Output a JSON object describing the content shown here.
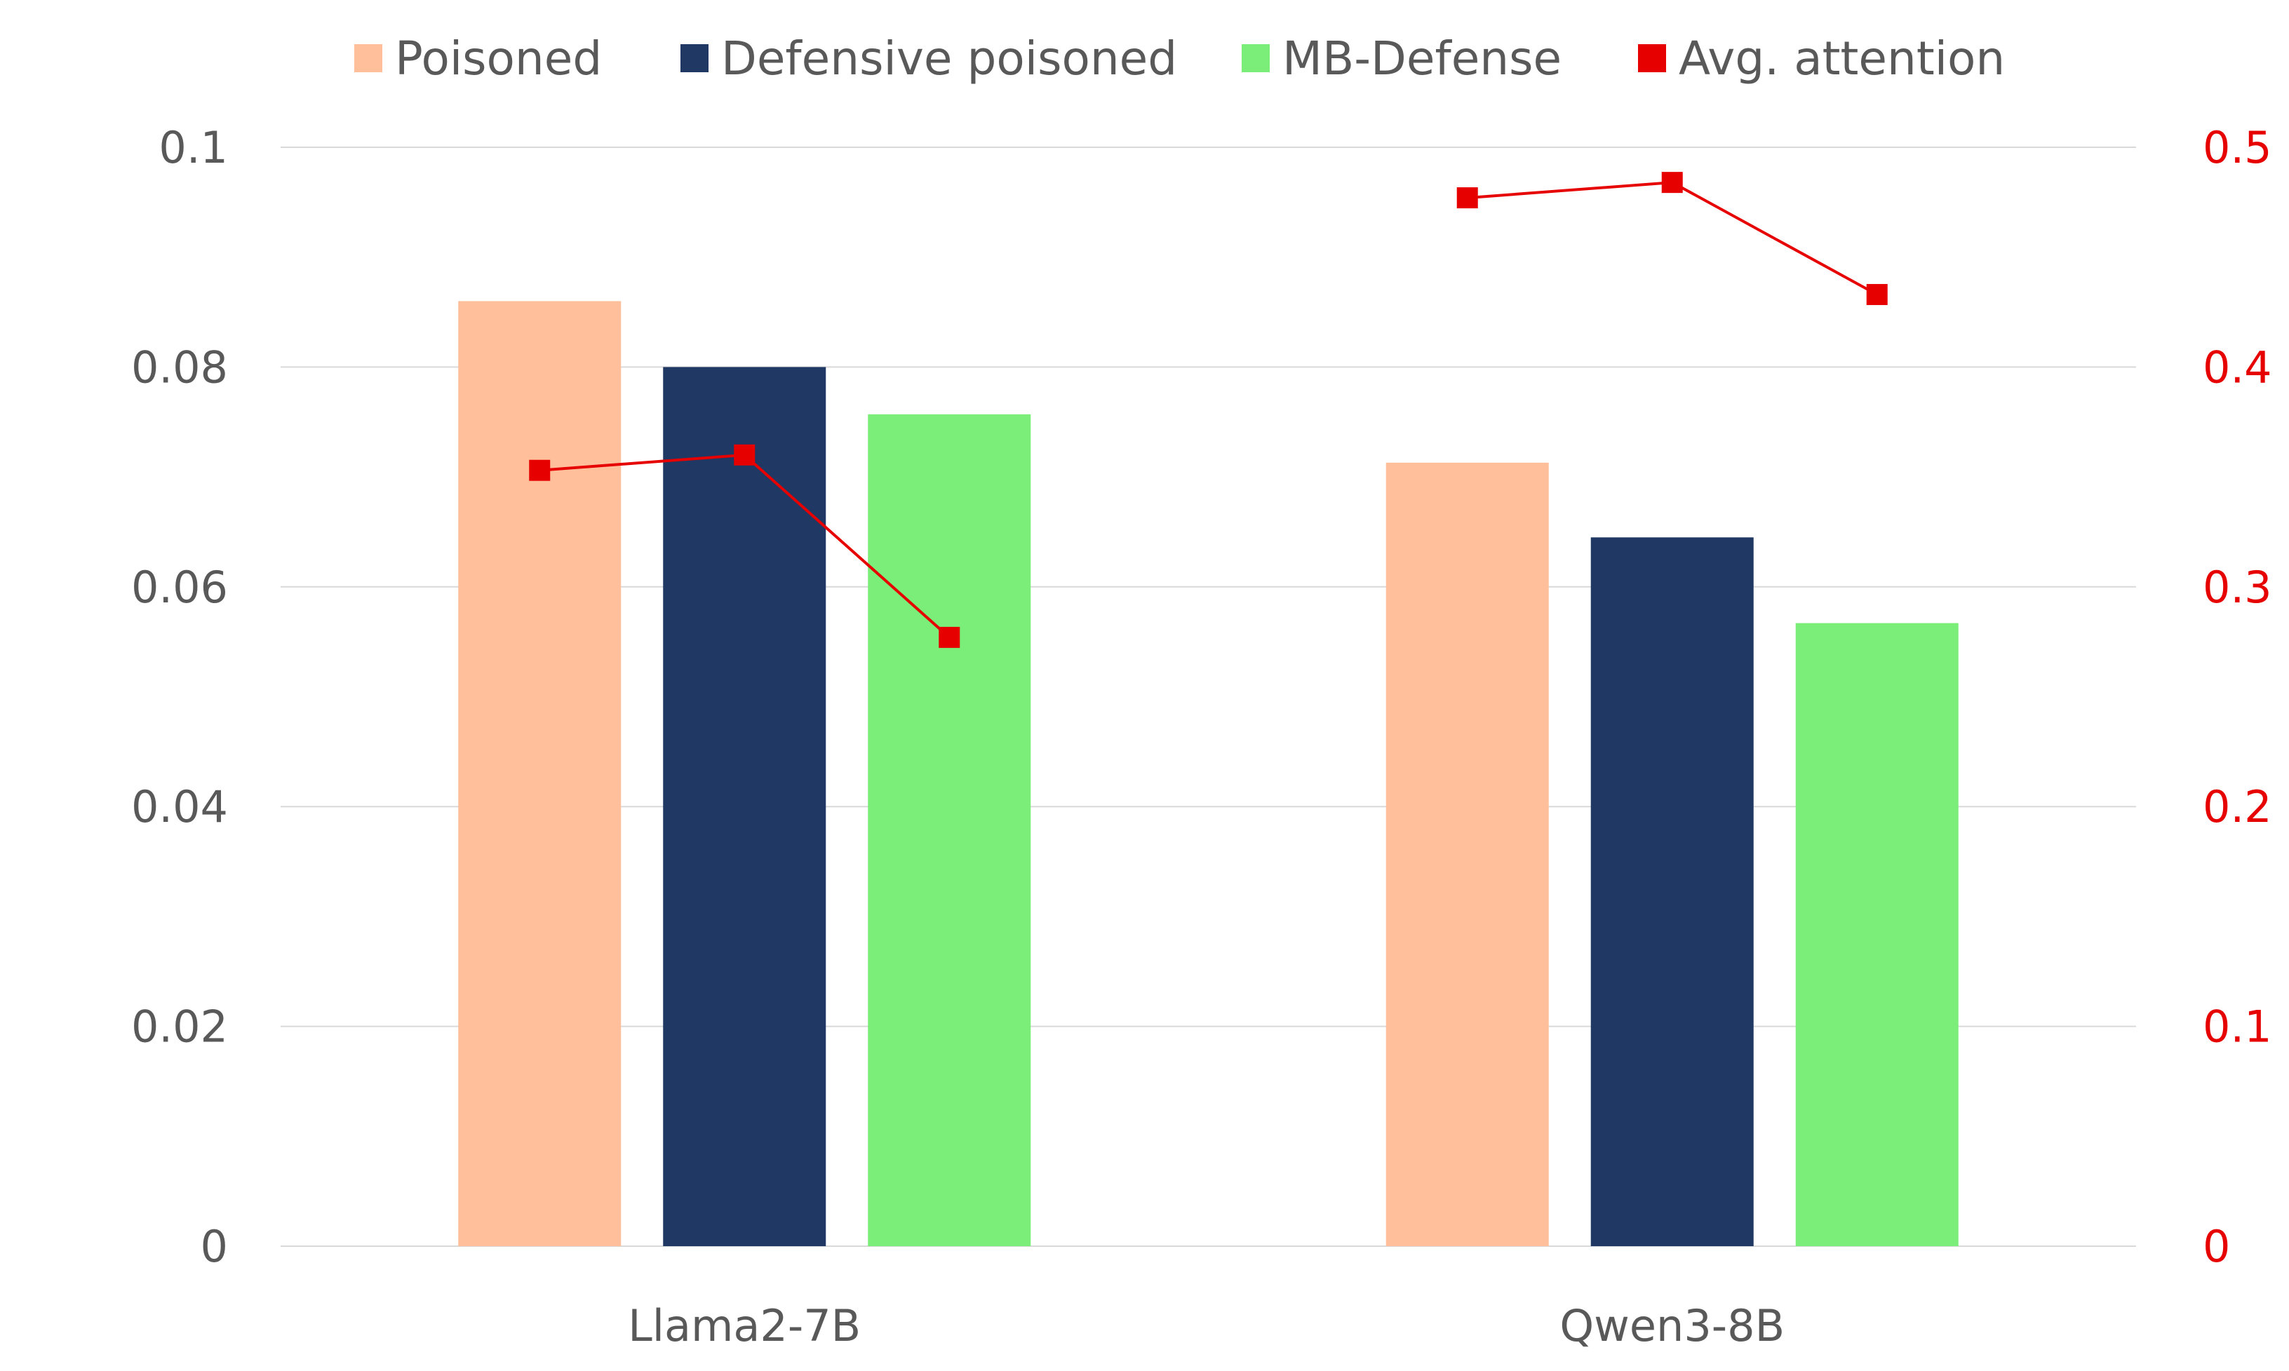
{
  "chart_data": {
    "type": "bar",
    "categories": [
      "Llama2-7B",
      "Qwen3-8B"
    ],
    "series": [
      {
        "name": "Poisoned",
        "kind": "bar",
        "axis": "left",
        "color": "#FFBF9B",
        "values": [
          0.086,
          0.0713
        ]
      },
      {
        "name": "Defensive poisoned",
        "kind": "bar",
        "axis": "left",
        "color": "#203864",
        "values": [
          0.08,
          0.0645
        ]
      },
      {
        "name": "MB-Defense",
        "kind": "bar",
        "axis": "left",
        "color": "#7AEE78",
        "values": [
          0.0757,
          0.0567
        ]
      }
    ],
    "line_series": {
      "name": "Avg. attention",
      "axis": "right",
      "color": "#E60000",
      "values": [
        [
          0.353,
          0.36,
          0.277
        ],
        [
          0.477,
          0.484,
          0.433
        ]
      ]
    },
    "y_left": {
      "ylim": [
        0,
        0.1
      ],
      "ticks": [
        "0",
        "0.02",
        "0.04",
        "0.06",
        "0.08",
        "0.1"
      ],
      "tick_values": [
        0,
        0.02,
        0.04,
        0.06,
        0.08,
        0.1
      ]
    },
    "y_right": {
      "ylim": [
        0,
        0.5
      ],
      "ticks": [
        "0",
        "0.1",
        "0.2",
        "0.3",
        "0.4",
        "0.5"
      ],
      "tick_values": [
        0,
        0.1,
        0.2,
        0.3,
        0.4,
        0.5
      ],
      "color": "#E60000"
    },
    "grid": true,
    "legend_position": "top"
  }
}
